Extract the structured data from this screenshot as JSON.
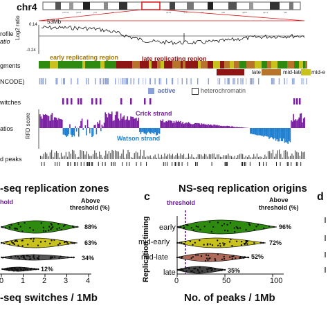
{
  "top": {
    "chrom": "chr4",
    "pos_label": "53Mb",
    "tick_top": "0.14",
    "tick_bottom": "-0.24",
    "log2_label": "Log2 ratio",
    "row_profile": "rofile",
    "row_profile2": "atio",
    "row_segments": "gments",
    "row_encode": "NCODE)",
    "row_switches": "witches",
    "row_ratios": "atios",
    "row_peaks": "d peaks",
    "early_region": "early replicating region",
    "late_region": "late replicating region",
    "legend_late": "late",
    "legend_midlate": "mid-late",
    "legend_mide": "mid-e",
    "legend_active": "active",
    "legend_hetero": "heterochromatin",
    "rfd_label": "RFD score",
    "crick": "Crick strand",
    "watson": "Watson strand"
  },
  "panel_b": {
    "title": "-seq replication zones",
    "threshold": "hold",
    "above_head1": "Above",
    "above_head2": "threshold (%)",
    "xlabel": "-seq switches / 1Mb",
    "xticks": [
      "0",
      "1",
      "2",
      "3",
      "4"
    ],
    "pcts": [
      "88%",
      "63%",
      "34%",
      "12%"
    ]
  },
  "panel_c": {
    "letter": "c",
    "title": "NS-seq replication origins",
    "threshold": "threshold",
    "above_head1": "Above",
    "above_head2": "threshold (%)",
    "ylabel": "Replication timing",
    "xlabel": "No. of peaks / 1Mb",
    "xticks": [
      "0",
      "50",
      "100"
    ],
    "categories": [
      "early",
      "mid-early",
      "mid-late",
      "late"
    ],
    "pcts": [
      "96%",
      "72%",
      "52%",
      "35%"
    ]
  },
  "panel_d": {
    "letter": "d"
  },
  "colors": {
    "early": "#2e8b0f",
    "midearly": "#c9c21c",
    "midlate": "#b8742a",
    "late": "#8f1414",
    "crick": "#7b1fa2",
    "watson": "#1e7fd0",
    "threshold": "#6a1b9a",
    "encode": "#8aa0d8"
  },
  "chart_data": [
    {
      "type": "violin",
      "title": "-seq replication zones",
      "xlabel": "-seq switches / 1Mb",
      "xlim": [
        0,
        4
      ],
      "categories": [
        "early",
        "mid-early",
        "mid-late",
        "late"
      ],
      "above_threshold_pct": [
        88,
        63,
        34,
        12
      ]
    },
    {
      "type": "violin",
      "title": "NS-seq replication origins",
      "xlabel": "No. of peaks / 1Mb",
      "ylabel": "Replication timing",
      "xlim": [
        0,
        100
      ],
      "categories": [
        "early",
        "mid-early",
        "mid-late",
        "late"
      ],
      "above_threshold_pct": [
        96,
        72,
        52,
        35
      ],
      "threshold": 10
    }
  ]
}
